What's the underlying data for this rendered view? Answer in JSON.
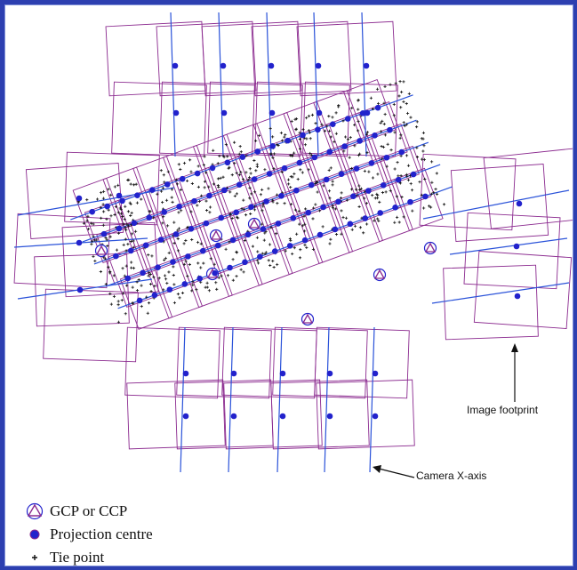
{
  "colors": {
    "footprint": "#8b2a8f",
    "camera_axis": "#2a52d9",
    "projection_centre": "#2222cc",
    "tie_point": "#111111",
    "frame_border": "#2d3fb0"
  },
  "annotations": {
    "image_footprint": "Image footprint",
    "camera_x_axis": "Camera X-axis"
  },
  "legend": {
    "items": [
      {
        "symbol": "triangle-circle-icon",
        "label": "GCP or CCP"
      },
      {
        "symbol": "projection-centre-icon",
        "label": "Projection centre"
      },
      {
        "symbol": "tie-point-icon",
        "label": "Tie point"
      }
    ]
  }
}
